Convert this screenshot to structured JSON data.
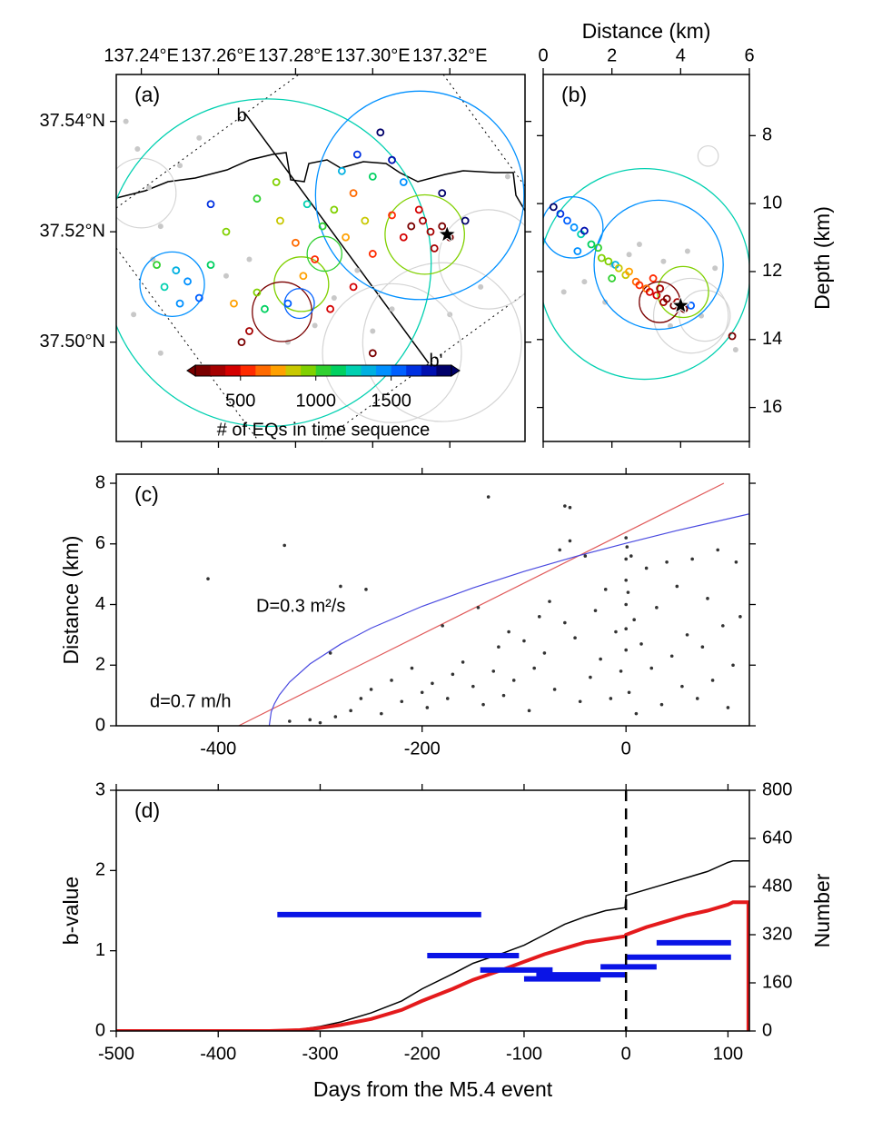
{
  "chart_data": [
    {
      "type": "map",
      "panel_label": "(a)",
      "xlim": [
        137.2335,
        137.3395
      ],
      "ylim": [
        37.482,
        37.5485
      ],
      "xticks": [
        {
          "value": 137.24,
          "label": "137.24°E"
        },
        {
          "value": 137.26,
          "label": "137.26°E"
        },
        {
          "value": 137.28,
          "label": "137.28°E"
        },
        {
          "value": 137.3,
          "label": "137.30°E"
        },
        {
          "value": 137.32,
          "label": "137.32°E"
        }
      ],
      "yticks": [
        {
          "value": 37.5,
          "label": "37.50°N"
        },
        {
          "value": 37.52,
          "label": "37.52°N"
        },
        {
          "value": 37.54,
          "label": "37.54°N"
        }
      ],
      "profile_labels": [
        "b",
        "b'"
      ],
      "background": {
        "color": "#c8c8c8",
        "x": [
          137.236,
          137.239,
          137.242,
          137.245,
          137.243,
          137.25,
          137.262,
          137.268,
          137.285,
          137.29,
          137.3,
          137.305,
          137.32,
          137.328,
          137.335,
          137.245,
          137.238,
          137.255,
          137.278,
          137.296
        ],
        "y": [
          37.54,
          37.535,
          37.528,
          37.521,
          37.515,
          37.532,
          37.512,
          37.515,
          37.503,
          37.508,
          37.502,
          37.506,
          37.505,
          37.51,
          37.53,
          37.498,
          37.505,
          37.537,
          37.5,
          37.513
        ]
      },
      "background_circles": {
        "color": "#d4d4d4",
        "x": [
          137.318,
          137.305,
          137.33,
          137.24
        ],
        "y": [
          37.5,
          37.498,
          37.515,
          37.527
        ],
        "r": [
          1.6,
          1.4,
          1.0,
          0.7
        ]
      },
      "circles": {
        "x": [
          137.2727,
          137.3122,
          137.248,
          137.2815,
          137.3135,
          137.2765,
          137.2875,
          137.281
        ],
        "y": [
          37.5144,
          37.5266,
          37.5105,
          37.5105,
          37.5195,
          37.5055,
          37.516,
          37.507
        ],
        "r": [
          3.3,
          2.1,
          0.65,
          0.55,
          0.8,
          0.6,
          0.35,
          0.3
        ],
        "c": [
          1250,
          1450,
          1450,
          950,
          950,
          250,
          1000,
          1550
        ]
      },
      "events": {
        "x": [
          137.31,
          137.313,
          137.315,
          137.308,
          137.318,
          137.312,
          137.305,
          137.316,
          137.32,
          137.295,
          137.298,
          137.29,
          137.3,
          137.293,
          137.287,
          137.283,
          137.28,
          137.276,
          137.285,
          137.3,
          137.296,
          137.305,
          137.302,
          137.308,
          137.292,
          137.249,
          137.252,
          137.246,
          137.255,
          137.25,
          137.258,
          137.244,
          137.268,
          137.272,
          137.27,
          137.266,
          137.278,
          137.264,
          137.282,
          137.262,
          137.258,
          137.27,
          137.275,
          137.289,
          137.295,
          137.3,
          137.324,
          137.318
        ],
        "y": [
          37.521,
          37.522,
          37.52,
          37.519,
          37.521,
          37.524,
          37.523,
          37.517,
          37.519,
          37.527,
          37.522,
          37.524,
          37.53,
          37.519,
          37.521,
          37.525,
          37.518,
          37.522,
          37.515,
          37.516,
          37.534,
          37.533,
          37.538,
          37.529,
          37.531,
          37.513,
          37.511,
          37.51,
          37.508,
          37.507,
          37.514,
          37.514,
          37.502,
          37.506,
          37.509,
          37.5,
          37.507,
          37.507,
          37.512,
          37.52,
          37.525,
          37.526,
          37.529,
          37.506,
          37.51,
          37.498,
          37.522,
          37.527
        ],
        "c": [
          260,
          300,
          350,
          400,
          280,
          450,
          520,
          320,
          250,
          600,
          800,
          900,
          1100,
          700,
          1000,
          1200,
          650,
          850,
          550,
          500,
          1600,
          1700,
          1850,
          1400,
          1300,
          1350,
          1450,
          1250,
          1550,
          1400,
          1150,
          1050,
          300,
          1100,
          950,
          260,
          1500,
          700,
          750,
          950,
          1650,
          1000,
          900,
          400,
          450,
          220,
          1800,
          1900
        ]
      },
      "star": {
        "x": 137.3193,
        "y": 37.5195
      },
      "colorbar": {
        "label": "# of EQs in time sequence",
        "clim": [
          200,
          1900
        ],
        "ticks": [
          500,
          1000,
          1500
        ],
        "colors": [
          "#7a0000",
          "#a50000",
          "#d40000",
          "#ff2a00",
          "#ff6a00",
          "#ffa000",
          "#c8c800",
          "#80d000",
          "#30d030",
          "#00d060",
          "#00d0b0",
          "#00b0e0",
          "#0090ff",
          "#0060ff",
          "#0030e0",
          "#0010b0",
          "#00006a"
        ]
      }
    },
    {
      "type": "scatter",
      "panel_label": "(b)",
      "xlabel": "Distance  (km)",
      "ylabel": "Depth (km)",
      "xlim": [
        0,
        6
      ],
      "ylim": [
        17.0,
        6.2
      ],
      "xticks": [
        0,
        2,
        4,
        6
      ],
      "yticks": [
        8,
        10,
        12,
        14,
        16
      ],
      "background": {
        "color": "#c8c8c8",
        "x": [
          2.0,
          2.5,
          2.8,
          3.5,
          4.2,
          1.2,
          0.6,
          1.8,
          4.6,
          5.0,
          3.7,
          5.6
        ],
        "y": [
          11.8,
          11.5,
          11.2,
          11.7,
          11.4,
          12.3,
          12.6,
          12.9,
          13.3,
          11.9,
          13.6,
          14.3
        ]
      },
      "background_circles": {
        "color": "#d4d4d4",
        "x": [
          4.3,
          4.7,
          4.8
        ],
        "y": [
          13.3,
          13.3,
          8.6
        ],
        "r": [
          1.1,
          0.75,
          0.3
        ]
      },
      "circles": {
        "x": [
          2.95,
          3.36,
          4.07,
          0.85,
          3.39
        ],
        "y": [
          12.07,
          11.8,
          12.6,
          10.7,
          12.9
        ],
        "r": [
          3.1,
          1.9,
          0.75,
          0.9,
          0.6
        ],
        "c": [
          1250,
          1450,
          950,
          1450,
          220
        ]
      },
      "events": {
        "x": [
          0.5,
          0.7,
          0.9,
          1.1,
          1.2,
          1.4,
          1.6,
          1.7,
          1.9,
          2.1,
          2.2,
          2.4,
          2.5,
          2.7,
          2.8,
          3.0,
          3.1,
          3.3,
          3.4,
          3.5,
          3.6,
          3.8,
          3.9,
          4.1,
          0.3,
          1.0,
          2.0,
          3.2,
          4.3,
          5.5
        ],
        "y": [
          10.3,
          10.5,
          10.7,
          10.9,
          10.8,
          11.2,
          11.3,
          11.6,
          11.7,
          11.8,
          11.9,
          12.1,
          12.0,
          12.3,
          12.4,
          12.5,
          12.6,
          12.7,
          12.5,
          12.9,
          12.8,
          13.0,
          12.9,
          13.1,
          10.1,
          11.4,
          12.2,
          12.2,
          13.0,
          13.9
        ],
        "c": [
          1600,
          1500,
          1400,
          1200,
          1700,
          1100,
          1000,
          950,
          900,
          1300,
          850,
          800,
          700,
          650,
          500,
          600,
          450,
          400,
          350,
          300,
          280,
          250,
          320,
          260,
          1800,
          1450,
          1050,
          550,
          1550,
          280
        ]
      },
      "star": {
        "x": 4.0,
        "y": 13.0
      }
    },
    {
      "type": "scatter",
      "panel_label": "(c)",
      "ylabel": "Distance (km)",
      "xlim": [
        -500,
        121
      ],
      "ylim": [
        0,
        8.3
      ],
      "xticks": [
        -400,
        -200,
        0
      ],
      "yticks": [
        0,
        2,
        4,
        6,
        8
      ],
      "points": {
        "color": "#333333",
        "x": [
          -410,
          -335,
          -330,
          -310,
          -300,
          -290,
          -285,
          -280,
          -270,
          -260,
          -255,
          -250,
          -240,
          -230,
          -220,
          -210,
          -200,
          -195,
          -190,
          -180,
          -175,
          -170,
          -160,
          -150,
          -145,
          -140,
          -135,
          -130,
          -125,
          -120,
          -115,
          -110,
          -100,
          -95,
          -90,
          -85,
          -80,
          -75,
          -70,
          -65,
          -60,
          -55,
          -50,
          -45,
          -40,
          -35,
          -30,
          -25,
          -20,
          -15,
          -10,
          -5,
          0,
          0,
          0,
          0,
          0,
          0,
          1,
          2,
          3,
          5,
          8,
          10,
          15,
          20,
          25,
          30,
          35,
          40,
          45,
          50,
          55,
          60,
          65,
          70,
          75,
          80,
          85,
          90,
          95,
          100,
          105,
          108,
          112,
          -60,
          -55
        ],
        "y": [
          4.85,
          5.95,
          0.15,
          0.2,
          0.1,
          2.4,
          0.3,
          4.6,
          0.5,
          0.9,
          4.5,
          1.2,
          0.4,
          1.5,
          0.8,
          1.9,
          1.1,
          0.6,
          1.4,
          3.3,
          0.9,
          1.7,
          2.1,
          1.3,
          3.9,
          0.7,
          7.55,
          1.8,
          2.6,
          1.0,
          3.1,
          1.5,
          2.8,
          0.5,
          1.9,
          3.6,
          2.4,
          4.1,
          1.2,
          5.8,
          3.4,
          7.2,
          2.9,
          0.8,
          5.6,
          1.6,
          3.8,
          2.2,
          4.5,
          0.9,
          3.1,
          1.8,
          6.2,
          5.5,
          4.8,
          4.0,
          3.2,
          2.5,
          5.9,
          4.4,
          1.1,
          5.6,
          3.5,
          0.4,
          2.7,
          5.2,
          1.9,
          3.9,
          0.7,
          5.4,
          2.3,
          4.6,
          1.3,
          3.0,
          5.5,
          0.9,
          2.6,
          4.2,
          1.5,
          5.8,
          3.3,
          0.6,
          2.0,
          5.4,
          3.6,
          7.25,
          6.1
        ]
      },
      "lines": [
        {
          "label": "d=0.7 m/h",
          "color": "#e05a5a",
          "x": [
            -380,
            96
          ],
          "y": [
            0,
            8.0
          ]
        },
        {
          "label": "D=0.3 m²/s",
          "color": "#4a4ae0",
          "x": [
            -350,
            -348,
            -345,
            -340,
            -330,
            -310,
            -280,
            -250,
            -200,
            -150,
            -100,
            -50,
            0,
            50,
            121
          ],
          "y": [
            0,
            0.46,
            0.72,
            1.02,
            1.44,
            2.04,
            2.69,
            3.22,
            3.94,
            4.55,
            5.09,
            5.58,
            6.02,
            6.44,
            6.99
          ]
        }
      ]
    },
    {
      "type": "line",
      "panel_label": "(d)",
      "xlabel": "Days from the M5.4 event",
      "ylabel": "b-value",
      "y2label": "Number",
      "xlim": [
        -500,
        121
      ],
      "ylim": [
        0,
        3
      ],
      "y2lim": [
        0,
        800
      ],
      "xticks": [
        -500,
        -400,
        -300,
        -200,
        -100,
        0,
        100
      ],
      "yticks": [
        0,
        1,
        2,
        3
      ],
      "y2ticks": [
        0,
        160,
        320,
        480,
        640,
        800
      ],
      "vline": 0,
      "segments": {
        "color": "#0a14e6",
        "x0": [
          -342,
          -195,
          -143,
          -100,
          -88,
          -25,
          0,
          30
        ],
        "x1": [
          -142,
          -105,
          -72,
          -25,
          0,
          30,
          103,
          103
        ],
        "values": [
          1.45,
          0.94,
          0.76,
          0.65,
          0.7,
          0.8,
          0.92,
          1.1
        ]
      },
      "series": [
        {
          "color": "#000000",
          "width": 1.5,
          "axis": "y2",
          "x": [
            -500,
            -350,
            -320,
            -300,
            -280,
            -250,
            -220,
            -200,
            -170,
            -150,
            -120,
            -100,
            -80,
            -60,
            -40,
            -20,
            -1,
            0,
            20,
            40,
            60,
            80,
            100,
            105,
            121
          ],
          "values": [
            0,
            0,
            5,
            15,
            30,
            60,
            100,
            140,
            190,
            225,
            260,
            285,
            320,
            355,
            380,
            400,
            410,
            450,
            470,
            490,
            510,
            530,
            560,
            565,
            565
          ]
        },
        {
          "color": "#e41a1c",
          "width": 4,
          "axis": "y2",
          "x": [
            -500,
            -350,
            -320,
            -300,
            -280,
            -250,
            -220,
            -200,
            -170,
            -150,
            -120,
            -100,
            -80,
            -60,
            -40,
            -20,
            -1,
            0,
            20,
            40,
            60,
            80,
            100,
            105,
            120,
            120
          ],
          "values": [
            0,
            0,
            3,
            10,
            20,
            40,
            70,
            100,
            140,
            170,
            205,
            230,
            255,
            275,
            295,
            305,
            315,
            320,
            345,
            365,
            385,
            400,
            420,
            428,
            428,
            0
          ]
        }
      ]
    }
  ]
}
